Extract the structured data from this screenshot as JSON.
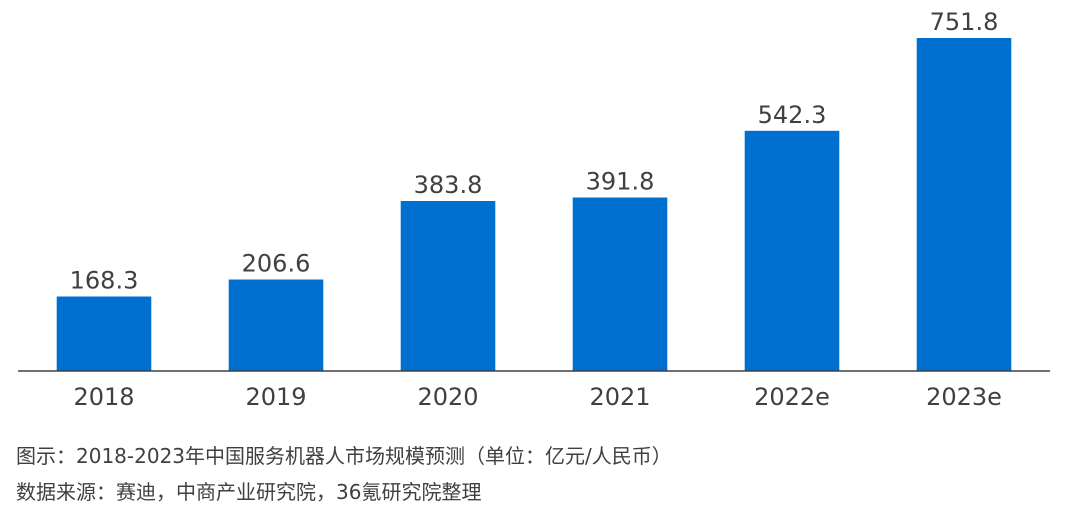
{
  "chart_data": {
    "type": "bar",
    "categories": [
      "2018",
      "2019",
      "2020",
      "2021",
      "2022e",
      "2023e"
    ],
    "values": [
      168.3,
      206.6,
      383.8,
      391.8,
      542.3,
      751.8
    ],
    "value_labels": [
      "168.3",
      "206.6",
      "383.8",
      "391.8",
      "542.3",
      "751.8"
    ],
    "title": "",
    "xlabel": "",
    "ylabel": "",
    "ylim": [
      0,
      751.8
    ],
    "grid": false,
    "bar_color": "#0070D0",
    "axis_color": "#404040"
  },
  "caption": {
    "line1": "图示：2018-2023年中国服务机器人市场规模预测（单位：亿元/人民币）",
    "line2": "数据来源：赛迪，中商产业研究院，36氪研究院整理"
  }
}
